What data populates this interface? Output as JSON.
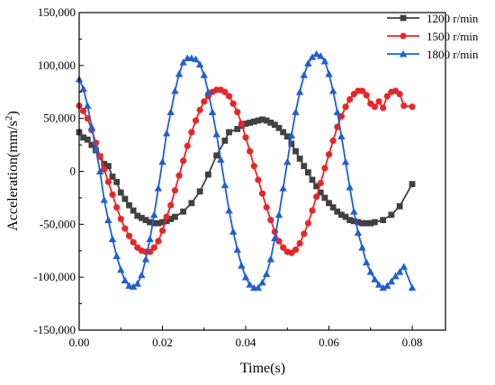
{
  "chart_data": {
    "type": "line",
    "xlabel": "Time(s)",
    "ylabel": "Acceleration(mm/s",
    "ylabel_sup": "2",
    "ylabel_close": ")",
    "xlim": [
      0,
      0.088
    ],
    "ylim": [
      -150000,
      150000
    ],
    "x_ticks": [
      0,
      0.02,
      0.04,
      0.06,
      0.08
    ],
    "x_tick_labels": [
      "0.00",
      "0.02",
      "0.04",
      "0.06",
      "0.08"
    ],
    "y_ticks": [
      150000,
      100000,
      50000,
      0,
      -50000,
      -100000,
      -150000
    ],
    "y_tick_labels": [
      "150,000",
      "100,000",
      "50,000",
      "0",
      "-50,000",
      "-100,000",
      "-150,000"
    ],
    "grid": false,
    "legend_position": "top-right",
    "series": [
      {
        "name": "1200 r/min",
        "color": "#404040",
        "marker": "square",
        "x": [
          0,
          0.001,
          0.002,
          0.003,
          0.004,
          0.005,
          0.006,
          0.007,
          0.008,
          0.009,
          0.01,
          0.011,
          0.012,
          0.013,
          0.014,
          0.015,
          0.016,
          0.017,
          0.018,
          0.019,
          0.02,
          0.021,
          0.022,
          0.023,
          0.025,
          0.027,
          0.029,
          0.031,
          0.033,
          0.035,
          0.036,
          0.038,
          0.039,
          0.04,
          0.041,
          0.042,
          0.043,
          0.044,
          0.045,
          0.046,
          0.047,
          0.048,
          0.049,
          0.05,
          0.051,
          0.052,
          0.053,
          0.054,
          0.055,
          0.056,
          0.057,
          0.058,
          0.059,
          0.06,
          0.061,
          0.062,
          0.063,
          0.064,
          0.065,
          0.066,
          0.067,
          0.068,
          0.069,
          0.07,
          0.071,
          0.073,
          0.075,
          0.077,
          0.08
        ],
        "y": [
          37000,
          32000,
          30000,
          25000,
          20000,
          14000,
          7000,
          5000,
          -5000,
          -10000,
          -20000,
          -26000,
          -32000,
          -37000,
          -42000,
          -44000,
          -46000,
          -48000,
          -49000,
          -49000,
          -48000,
          -47000,
          -45000,
          -43000,
          -38000,
          -30000,
          -19000,
          -3000,
          15000,
          29000,
          37000,
          40000,
          43000,
          45000,
          46000,
          47000,
          48000,
          49000,
          48000,
          46000,
          44000,
          41000,
          37000,
          33000,
          26000,
          19000,
          12000,
          5000,
          -1000,
          -8000,
          -14000,
          -20000,
          -25000,
          -30000,
          -34000,
          -38000,
          -41000,
          -43000,
          -46000,
          -47000,
          -48000,
          -49000,
          -49000,
          -49000,
          -48000,
          -46000,
          -41000,
          -33000,
          -12000
        ]
      },
      {
        "name": "1500 r/min",
        "color": "#e8262a",
        "marker": "circle",
        "x": [
          0,
          0.001,
          0.002,
          0.003,
          0.004,
          0.005,
          0.006,
          0.007,
          0.008,
          0.009,
          0.01,
          0.011,
          0.012,
          0.013,
          0.014,
          0.015,
          0.016,
          0.017,
          0.018,
          0.019,
          0.02,
          0.021,
          0.022,
          0.023,
          0.024,
          0.025,
          0.026,
          0.027,
          0.028,
          0.029,
          0.03,
          0.031,
          0.032,
          0.033,
          0.034,
          0.035,
          0.036,
          0.037,
          0.038,
          0.039,
          0.04,
          0.041,
          0.042,
          0.043,
          0.044,
          0.045,
          0.046,
          0.047,
          0.048,
          0.049,
          0.05,
          0.051,
          0.052,
          0.053,
          0.054,
          0.055,
          0.056,
          0.057,
          0.058,
          0.059,
          0.06,
          0.061,
          0.062,
          0.063,
          0.064,
          0.065,
          0.066,
          0.067,
          0.068,
          0.069,
          0.07,
          0.071,
          0.072,
          0.073,
          0.074,
          0.075,
          0.076,
          0.077,
          0.078,
          0.08
        ],
        "y": [
          62000,
          57000,
          50000,
          39000,
          27000,
          14000,
          2000,
          -10000,
          -22000,
          -34000,
          -45000,
          -54000,
          -61000,
          -67000,
          -72000,
          -75000,
          -76000,
          -76000,
          -72000,
          -66000,
          -56000,
          -43000,
          -32000,
          -18000,
          -4000,
          10000,
          24000,
          37000,
          48000,
          58000,
          66000,
          71000,
          75000,
          77000,
          77000,
          75000,
          71000,
          64000,
          56000,
          45000,
          32000,
          19000,
          5000,
          -8000,
          -21000,
          -34000,
          -46000,
          -57000,
          -66000,
          -72000,
          -76000,
          -77000,
          -74000,
          -68000,
          -59000,
          -49000,
          -37000,
          -24000,
          -11000,
          3000,
          16000,
          29000,
          42000,
          52000,
          61000,
          68000,
          73000,
          76000,
          76000,
          72000,
          64000,
          61000,
          66000,
          60000,
          71000,
          75000,
          76000,
          73000,
          62000,
          61000
        ]
      },
      {
        "name": "1800 r/min",
        "color": "#1f5fd3",
        "marker": "triangle",
        "x": [
          0,
          0.001,
          0.002,
          0.003,
          0.004,
          0.005,
          0.006,
          0.007,
          0.008,
          0.009,
          0.01,
          0.011,
          0.012,
          0.013,
          0.014,
          0.015,
          0.016,
          0.017,
          0.018,
          0.019,
          0.02,
          0.021,
          0.022,
          0.023,
          0.024,
          0.025,
          0.026,
          0.027,
          0.028,
          0.029,
          0.03,
          0.031,
          0.032,
          0.033,
          0.034,
          0.035,
          0.036,
          0.037,
          0.038,
          0.039,
          0.04,
          0.041,
          0.042,
          0.043,
          0.044,
          0.045,
          0.046,
          0.047,
          0.048,
          0.049,
          0.05,
          0.051,
          0.052,
          0.053,
          0.054,
          0.055,
          0.056,
          0.057,
          0.058,
          0.059,
          0.06,
          0.061,
          0.062,
          0.063,
          0.064,
          0.065,
          0.066,
          0.067,
          0.068,
          0.069,
          0.07,
          0.071,
          0.072,
          0.073,
          0.074,
          0.075,
          0.076,
          0.077,
          0.078,
          0.08
        ],
        "y": [
          87000,
          78000,
          62000,
          42000,
          21000,
          0,
          -27000,
          -46000,
          -64000,
          -80000,
          -93000,
          -103000,
          -108000,
          -109000,
          -106000,
          -98000,
          -83000,
          -64000,
          -41000,
          -16000,
          9000,
          36000,
          56000,
          76000,
          92000,
          103000,
          107000,
          107000,
          106000,
          101000,
          91000,
          75000,
          56000,
          35000,
          11000,
          -13000,
          -37000,
          -57000,
          -74000,
          -89000,
          -100000,
          -107000,
          -110000,
          -110000,
          -105000,
          -97000,
          -83000,
          -63000,
          -41000,
          -16000,
          9000,
          34000,
          56000,
          75000,
          91000,
          102000,
          108000,
          111000,
          109000,
          104000,
          92000,
          76000,
          56000,
          33000,
          9000,
          -15000,
          -38000,
          -58000,
          -72000,
          -86000,
          -95000,
          -102000,
          -107000,
          -110000,
          -108000,
          -104000,
          -99000,
          -95000,
          -90000,
          -110000
        ]
      }
    ]
  }
}
